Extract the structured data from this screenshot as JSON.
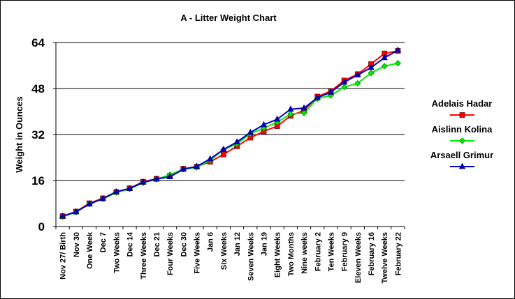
{
  "chart_data": {
    "type": "line",
    "title": "A - Litter Weight Chart",
    "ylabel": "Weight in Ounces",
    "xlabel": "",
    "ylim": [
      0,
      64
    ],
    "yticks": [
      "0",
      "16",
      "32",
      "48",
      "64"
    ],
    "ytick_values": [
      0,
      16,
      32,
      48,
      64
    ],
    "grid": "horizontal",
    "legend_position": "right",
    "categories": [
      "Nov 27/ Birth",
      "Nov 30",
      "One Week",
      "Dec 7",
      "Two Weeks",
      "Dec 14",
      "Three Weeks",
      "Dec 21",
      "Four Weeks",
      "Dec 30",
      "Five Weeks",
      "Jan 6",
      "Six Weeks",
      "Jan 12",
      "Seven Weeks",
      "Jan 19",
      "Eight Weeks",
      "Two Months",
      "Nine weeks",
      "February 2",
      "Ten Weeks",
      "February 9",
      "Eleven Weeks",
      "February 16",
      "Twelve Weeks",
      "February 22"
    ],
    "series": [
      {
        "name": "Adelais Hadar",
        "color": "#ff0000",
        "marker": "square",
        "values": [
          3.6,
          5.2,
          8.1,
          9.8,
          12.0,
          13.3,
          15.6,
          16.6,
          17.6,
          20.1,
          20.8,
          22.5,
          25.1,
          27.9,
          30.9,
          33.1,
          34.9,
          38.5,
          40.4,
          45.2,
          47.1,
          50.8,
          53.0,
          56.5,
          60.2,
          61.1
        ]
      },
      {
        "name": "Aislinn Kolina",
        "color": "#00ee00",
        "marker": "diamond",
        "values": [
          3.4,
          5.0,
          7.9,
          9.6,
          11.8,
          13.1,
          15.2,
          16.4,
          18.0,
          19.9,
          20.6,
          23.0,
          26.8,
          28.7,
          32.3,
          34.2,
          36.3,
          39.1,
          39.5,
          44.5,
          45.6,
          48.5,
          49.8,
          53.4,
          55.8,
          56.8
        ]
      },
      {
        "name": "Arsaell Grimur",
        "color": "#0000cc",
        "marker": "triangle",
        "values": [
          3.6,
          5.1,
          7.8,
          9.7,
          12.1,
          13.2,
          15.4,
          16.5,
          17.3,
          19.9,
          20.9,
          23.5,
          26.8,
          29.4,
          32.7,
          35.4,
          37.3,
          40.8,
          41.2,
          44.8,
          46.7,
          50.2,
          52.7,
          55.3,
          58.7,
          61.3
        ]
      }
    ]
  }
}
